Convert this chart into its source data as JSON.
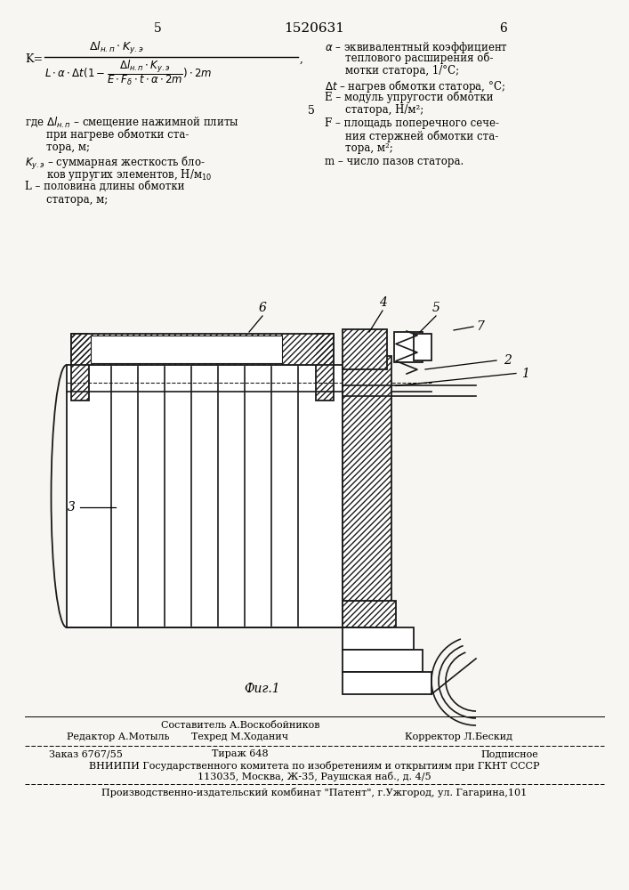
{
  "page_number_left": "5",
  "patent_number": "1520631",
  "page_number_right": "6",
  "bg": "#f8f6f2",
  "vnipi_line": "ВНИИПИ Государственного комитета по изобретениям и открытиям при ГКНТ СССР",
  "address_line": "113035, Москва, Ж-35, Раушская наб., д. 4/5",
  "publisher_line": "Производственно-издательский комбинат \"Патент\", г.Ужгород, ул. Гагарина,101"
}
